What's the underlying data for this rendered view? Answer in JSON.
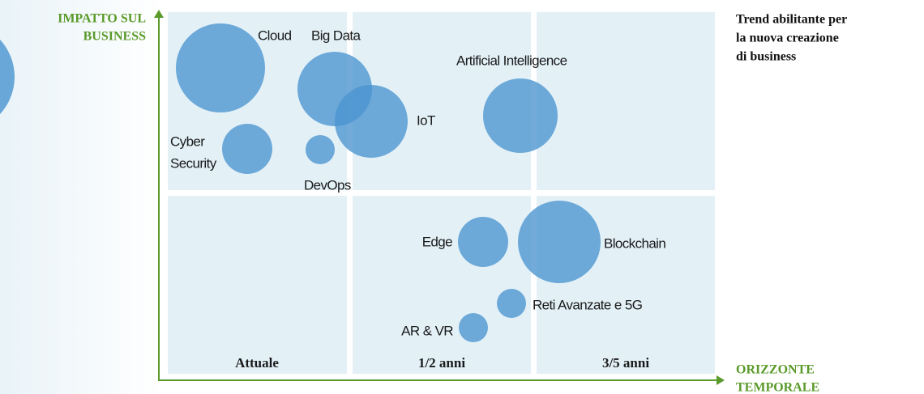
{
  "y_axis_label": [
    "IMPATTO SUL",
    "BUSINESS"
  ],
  "x_axis_label": [
    "ORIZZONTE",
    "TEMPORALE"
  ],
  "legend_text": [
    "Trend abilitante per",
    "la nuova creazione",
    "di business"
  ],
  "columns": [
    "Attuale",
    "1/2 anni",
    "3/5 anni"
  ],
  "bubbles": [
    {
      "label": [
        "Cloud"
      ]
    },
    {
      "label": [
        "Big Data"
      ]
    },
    {
      "label": [
        "IoT"
      ]
    },
    {
      "label": [
        "Artificial Intelligence"
      ]
    },
    {
      "label": [
        "Cyber",
        "Security"
      ]
    },
    {
      "label": [
        "DevOps"
      ]
    },
    {
      "label": [
        "Edge"
      ]
    },
    {
      "label": [
        "Blockchain"
      ]
    },
    {
      "label": [
        "Reti Avanzate e 5G"
      ]
    },
    {
      "label": [
        "AR & VR"
      ]
    }
  ]
}
